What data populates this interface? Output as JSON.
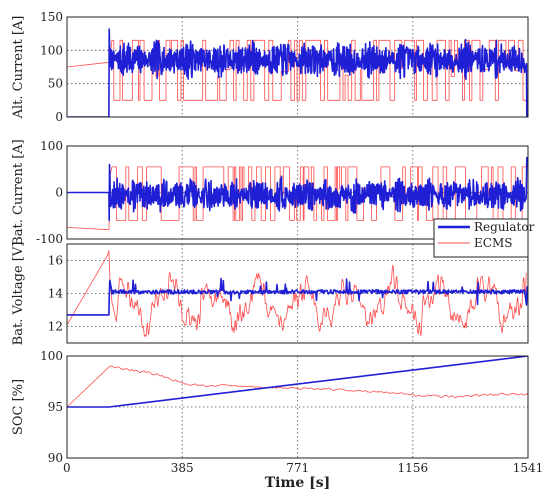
{
  "chart_data": [
    {
      "type": "line",
      "ylabel": "Alt. Current [A]",
      "ylim": [
        0,
        150
      ],
      "yticks": [
        "0",
        "50",
        "100",
        "150"
      ],
      "grid": true,
      "series": [
        {
          "name": "Regulator",
          "color": "#1f1fd6",
          "x": [
            0,
            140,
            142,
            150,
            300,
            500,
            771,
            1000,
            1200,
            1400,
            1535,
            1537,
            1541
          ],
          "values": [
            0,
            0,
            130,
            90,
            85,
            86,
            85,
            86,
            85,
            86,
            85,
            0,
            0
          ]
        },
        {
          "name": "ECMS",
          "color": "#ff4d4d",
          "x": [
            0,
            140,
            150,
            1541
          ],
          "values": [
            75,
            82,
            25,
            30
          ]
        }
      ]
    },
    {
      "type": "line",
      "ylabel": "Bat. Current [A]",
      "ylim": [
        -100,
        100
      ],
      "yticks": [
        "-100",
        "0",
        "100"
      ],
      "grid": true,
      "series": [
        {
          "name": "Regulator",
          "color": "#1f1fd6",
          "x": [
            0,
            140,
            142,
            150,
            771,
            1535,
            1538,
            1541
          ],
          "values": [
            0,
            0,
            -60,
            -5,
            -5,
            -10,
            75,
            75
          ]
        },
        {
          "name": "ECMS",
          "color": "#ff4d4d",
          "x": [
            0,
            140,
            150,
            1541
          ],
          "values": [
            -75,
            -80,
            55,
            -40
          ]
        }
      ]
    },
    {
      "type": "line",
      "ylabel": "Bat. Voltage [V]",
      "ylim": [
        11,
        17
      ],
      "yticks": [
        "12",
        "14",
        "16"
      ],
      "grid": true,
      "legend": {
        "placement": "top-right",
        "entries": [
          "Regulator",
          "ECMS"
        ]
      },
      "series": [
        {
          "name": "Regulator",
          "color": "#1f1fd6",
          "x": [
            0,
            140,
            142,
            150,
            771,
            1541
          ],
          "values": [
            12.7,
            12.7,
            13.7,
            14.1,
            14.1,
            14.1
          ]
        },
        {
          "name": "ECMS",
          "color": "#ff4d4d",
          "x": [
            0,
            140,
            150,
            1541
          ],
          "values": [
            12.1,
            16.5,
            14.0,
            13.4
          ]
        }
      ]
    },
    {
      "type": "line",
      "ylabel": "SOC [%]",
      "ylim": [
        90,
        100
      ],
      "yticks": [
        "90",
        "95",
        "100"
      ],
      "xlabel": "Time [s]",
      "xlim": [
        0,
        1541
      ],
      "xticks": [
        "0",
        "385",
        "771",
        "1156",
        "1541"
      ],
      "grid": true,
      "series": [
        {
          "name": "Regulator",
          "color": "#1f1fd6",
          "x": [
            0,
            140,
            1541
          ],
          "values": [
            95,
            95,
            100
          ]
        },
        {
          "name": "ECMS",
          "color": "#ff4d4d",
          "x": [
            0,
            140,
            300,
            400,
            600,
            800,
            1000,
            1200,
            1300,
            1400,
            1541
          ],
          "values": [
            95,
            99,
            98.2,
            97.2,
            97.0,
            96.8,
            96.6,
            96.1,
            96.0,
            96.2,
            96.3
          ]
        }
      ]
    }
  ]
}
